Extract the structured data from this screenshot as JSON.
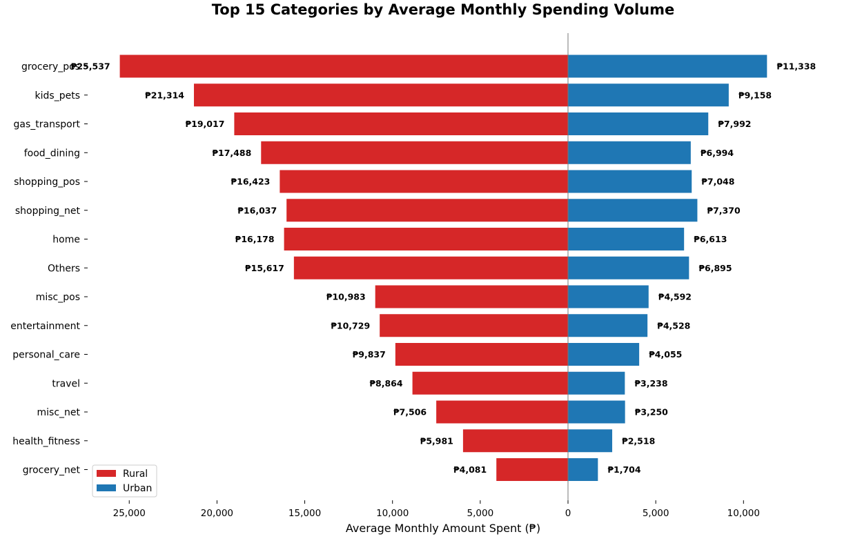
{
  "chart_data": {
    "type": "bar",
    "orientation": "horizontal-diverging",
    "title": "Top 15 Categories by Average Monthly Spending Volume",
    "xlabel": "Average Monthly Amount Spent (₱)",
    "ylabel": "",
    "currency": "₱",
    "xlim": [
      -27000,
      11900
    ],
    "xticks": [
      {
        "value": -25000,
        "label": "25,000"
      },
      {
        "value": -20000,
        "label": "20,000"
      },
      {
        "value": -15000,
        "label": "15,000"
      },
      {
        "value": -10000,
        "label": "10,000"
      },
      {
        "value": -5000,
        "label": "5,000"
      },
      {
        "value": 0,
        "label": "0"
      },
      {
        "value": 5000,
        "label": "5,000"
      },
      {
        "value": 10000,
        "label": "10,000"
      }
    ],
    "categories": [
      "grocery_pos",
      "kids_pets",
      "gas_transport",
      "food_dining",
      "shopping_pos",
      "shopping_net",
      "home",
      "Others",
      "misc_pos",
      "entertainment",
      "personal_care",
      "travel",
      "misc_net",
      "health_fitness",
      "grocery_net"
    ],
    "series": [
      {
        "name": "Rural",
        "color": "#d62728",
        "direction": "left",
        "values": [
          25537,
          21314,
          19017,
          17488,
          16423,
          16037,
          16178,
          15617,
          10983,
          10729,
          9837,
          8864,
          7506,
          5981,
          4081
        ],
        "labels": [
          "₱25,537",
          "₱21,314",
          "₱19,017",
          "₱17,488",
          "₱16,423",
          "₱16,037",
          "₱16,178",
          "₱15,617",
          "₱10,983",
          "₱10,729",
          "₱9,837",
          "₱8,864",
          "₱7,506",
          "₱5,981",
          "₱4,081"
        ]
      },
      {
        "name": "Urban",
        "color": "#1f77b4",
        "direction": "right",
        "values": [
          11338,
          9158,
          7992,
          6994,
          7048,
          7370,
          6613,
          6895,
          4592,
          4528,
          4055,
          3238,
          3250,
          2518,
          1704
        ],
        "labels": [
          "₱11,338",
          "₱9,158",
          "₱7,992",
          "₱6,994",
          "₱7,048",
          "₱7,370",
          "₱6,613",
          "₱6,895",
          "₱4,592",
          "₱4,528",
          "₱4,055",
          "₱3,238",
          "₱3,250",
          "₱2,518",
          "₱1,704"
        ]
      }
    ],
    "legend": {
      "position": "lower-left",
      "entries": [
        "Rural",
        "Urban"
      ]
    },
    "grid": false,
    "zero_line_color": "#777777"
  }
}
